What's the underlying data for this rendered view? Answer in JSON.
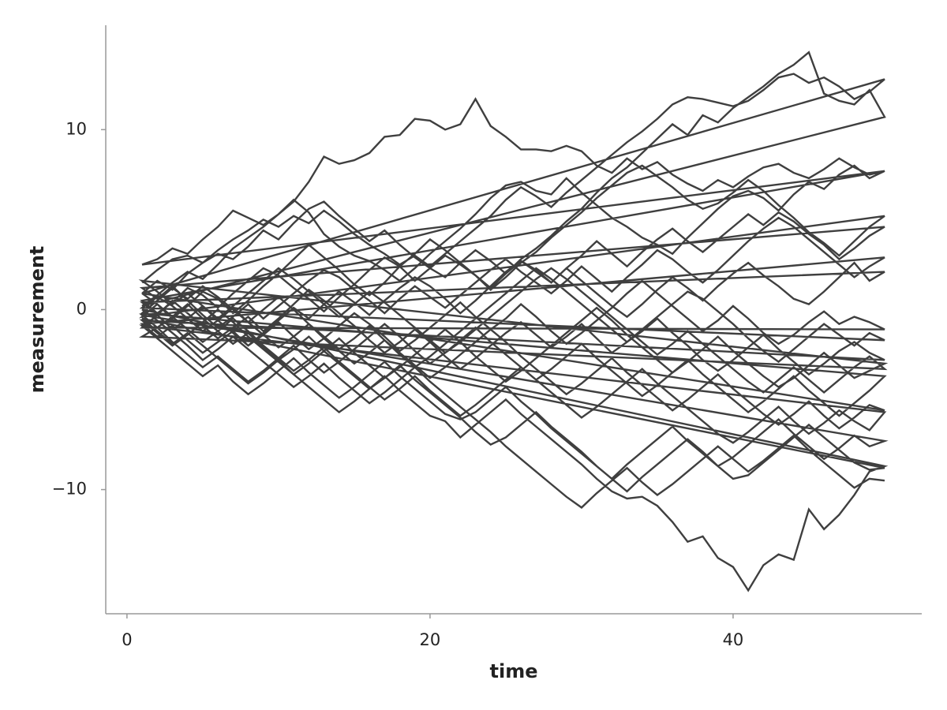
{
  "chart_data": {
    "type": "line",
    "x_label": "time",
    "y_label": "measurement",
    "color": "#3f3f3f",
    "grid": false,
    "xlim": [
      -1.4,
      52.45
    ],
    "ylim": [
      -16.9,
      15.8
    ],
    "xticks": [
      0,
      20,
      40
    ],
    "yticks": [
      {
        "value": -10,
        "label": "−10"
      },
      0,
      10
    ],
    "x": [
      1,
      2,
      3,
      4,
      5,
      6,
      7,
      8,
      9,
      10,
      11,
      12,
      13,
      14,
      15,
      16,
      17,
      18,
      19,
      20,
      21,
      22,
      23,
      24,
      25,
      26,
      27,
      28,
      29,
      30,
      31,
      32,
      33,
      34,
      35,
      36,
      37,
      38,
      39,
      40,
      41,
      42,
      43,
      44,
      45,
      46,
      47,
      48,
      49,
      50
    ],
    "series": [
      {
        "values": [
          1.5,
          2.2,
          2.8,
          3.0,
          2.6,
          3.3,
          3.9,
          4.4,
          5.0,
          4.6,
          5.2,
          4.8,
          5.5,
          4.9,
          4.2,
          3.6,
          3.1,
          2.5,
          3.0,
          2.4,
          3.1,
          3.8,
          4.5,
          5.2,
          6.1,
          6.8,
          6.3,
          5.7,
          6.5,
          7.2,
          7.9,
          8.6,
          9.3,
          9.9,
          10.6,
          11.4,
          11.8,
          11.7,
          11.5,
          11.3,
          11.6,
          12.2,
          12.9,
          13.1,
          12.6,
          12.9,
          12.4,
          11.7,
          12.1,
          12.8
        ]
      },
      {
        "values": [
          0.9,
          1.6,
          1.1,
          2.0,
          2.6,
          3.1,
          2.8,
          3.5,
          4.4,
          3.9,
          4.8,
          5.6,
          6.0,
          5.2,
          4.5,
          3.8,
          4.4,
          3.6,
          2.9,
          2.3,
          1.8,
          2.6,
          3.3,
          2.7,
          2.0,
          2.8,
          3.4,
          4.1,
          4.9,
          5.6,
          6.5,
          7.3,
          7.9,
          8.7,
          9.5,
          10.3,
          9.7,
          10.8,
          10.4,
          11.2,
          11.8,
          12.4,
          13.1,
          13.6,
          14.3,
          12.0,
          11.6,
          11.4,
          12.2,
          10.7
        ]
      },
      {
        "values": [
          0.2,
          0.8,
          1.5,
          2.1,
          1.7,
          2.5,
          3.4,
          4.0,
          4.6,
          5.3,
          6.0,
          7.1,
          8.5,
          8.1,
          8.3,
          8.7,
          9.6,
          9.7,
          10.6,
          10.5,
          10.0,
          10.3,
          11.7,
          10.2,
          9.6,
          8.9,
          8.9,
          8.8,
          9.1,
          8.8,
          8.0,
          7.6,
          8.4,
          7.8,
          8.2,
          7.5,
          7.0,
          6.6,
          7.2,
          6.8,
          7.4,
          7.9,
          8.1,
          7.6,
          7.3,
          7.8,
          8.4,
          7.9,
          7.5,
          7.7
        ]
      },
      {
        "values": [
          2.5,
          2.8,
          3.4,
          3.1,
          3.9,
          4.6,
          5.5,
          5.1,
          4.7,
          5.3,
          6.1,
          5.4,
          4.2,
          3.5,
          3.0,
          2.7,
          2.2,
          1.6,
          2.3,
          3.1,
          3.8,
          4.5,
          5.3,
          6.2,
          6.9,
          7.1,
          6.6,
          6.4,
          7.3,
          6.5,
          5.8,
          5.1,
          4.6,
          4.0,
          3.6,
          3.1,
          4.0,
          4.8,
          5.6,
          6.3,
          6.6,
          6.2,
          5.5,
          6.4,
          7.1,
          6.7,
          7.5,
          8.0,
          7.3,
          7.7
        ]
      },
      {
        "values": [
          0.5,
          -0.2,
          0.4,
          1.2,
          0.8,
          0.1,
          0.9,
          1.6,
          2.3,
          1.9,
          1.2,
          0.6,
          -0.1,
          0.7,
          1.4,
          2.2,
          2.9,
          2.4,
          1.6,
          2.3,
          3.0,
          2.5,
          1.9,
          1.1,
          1.8,
          2.6,
          3.2,
          4.0,
          4.7,
          5.4,
          6.2,
          6.9,
          7.6,
          8.0,
          7.4,
          6.8,
          6.1,
          5.6,
          5.9,
          6.5,
          7.2,
          6.6,
          5.8,
          5.1,
          4.3,
          3.7,
          3.0,
          3.8,
          4.6,
          5.2
        ]
      },
      {
        "values": [
          -0.4,
          0.3,
          -0.5,
          0.2,
          1.0,
          0.6,
          -0.2,
          0.5,
          1.3,
          2.0,
          2.8,
          3.6,
          2.9,
          2.2,
          1.4,
          0.8,
          1.5,
          2.4,
          3.1,
          3.9,
          3.3,
          2.6,
          1.9,
          1.2,
          2.0,
          2.7,
          2.1,
          1.5,
          2.3,
          3.0,
          3.8,
          3.1,
          2.4,
          3.2,
          3.9,
          4.5,
          3.8,
          3.2,
          3.9,
          4.6,
          5.3,
          4.7,
          5.4,
          4.9,
          4.2,
          3.6,
          2.8,
          3.4,
          4.1,
          4.6
        ]
      },
      {
        "values": [
          1.2,
          0.6,
          1.3,
          0.5,
          -0.3,
          -1.0,
          -0.4,
          0.3,
          -0.5,
          0.2,
          0.9,
          1.6,
          2.2,
          1.8,
          1.1,
          0.5,
          -0.2,
          0.6,
          1.3,
          0.7,
          0.1,
          0.8,
          1.5,
          2.2,
          2.8,
          2.1,
          1.5,
          0.9,
          1.6,
          2.4,
          1.7,
          1.0,
          1.8,
          2.5,
          3.3,
          2.8,
          2.1,
          1.5,
          2.2,
          3.0,
          3.8,
          4.5,
          5.1,
          4.6,
          3.9,
          3.2,
          2.5,
          1.8,
          2.4,
          2.9
        ]
      },
      {
        "values": [
          -0.8,
          -1.5,
          -0.9,
          -1.7,
          -2.4,
          -1.8,
          -1.2,
          -2.0,
          -1.3,
          -0.6,
          0.1,
          -0.5,
          0.3,
          1.0,
          0.4,
          -0.3,
          0.5,
          1.2,
          1.8,
          1.3,
          0.6,
          -0.2,
          0.5,
          1.3,
          2.1,
          2.7,
          2.2,
          1.5,
          2.3,
          1.6,
          0.9,
          0.2,
          -0.4,
          0.3,
          1.1,
          1.8,
          1.2,
          0.5,
          1.3,
          2.0,
          2.6,
          1.9,
          1.3,
          0.6,
          0.3,
          1.0,
          1.8,
          2.6,
          1.6,
          2.1
        ]
      },
      {
        "values": [
          0.4,
          -0.3,
          -1.1,
          -0.5,
          0.2,
          -0.6,
          -1.3,
          -2.0,
          -1.4,
          -0.7,
          -1.5,
          -2.2,
          -1.6,
          -0.9,
          -0.2,
          -0.8,
          -1.5,
          -2.3,
          -1.7,
          -1.0,
          -0.3,
          0.4,
          -0.4,
          -1.1,
          -0.5,
          0.3,
          -0.4,
          -1.2,
          -1.9,
          -1.3,
          -0.6,
          0.1,
          0.9,
          1.6,
          0.9,
          0.2,
          -0.5,
          -1.2,
          -0.6,
          0.2,
          -0.5,
          -1.3,
          -1.9,
          -1.4,
          -0.7,
          -0.1,
          -0.8,
          -0.4,
          -0.7,
          -1.1
        ]
      },
      {
        "values": [
          -1.0,
          -0.3,
          0.5,
          -0.2,
          -0.9,
          -1.6,
          -1.0,
          -0.4,
          -1.2,
          -0.5,
          0.3,
          1.1,
          0.5,
          -0.2,
          -0.9,
          -1.7,
          -2.4,
          -1.8,
          -1.1,
          -1.8,
          -2.6,
          -3.3,
          -2.7,
          -2.0,
          -1.3,
          -0.7,
          -1.4,
          -2.1,
          -1.5,
          -0.8,
          -1.6,
          -2.4,
          -1.8,
          -1.1,
          -0.4,
          0.3,
          1.0,
          0.6,
          -0.1,
          -0.8,
          -1.6,
          -2.3,
          -2.9,
          -2.2,
          -1.5,
          -0.8,
          -1.4,
          -2.0,
          -1.3,
          -1.7
        ]
      },
      {
        "values": [
          0.1,
          0.7,
          0.2,
          -0.5,
          -1.2,
          -0.6,
          0.1,
          -0.7,
          -1.4,
          -2.1,
          -1.5,
          -0.8,
          -1.6,
          -2.3,
          -3.0,
          -2.4,
          -1.7,
          -2.5,
          -3.2,
          -2.6,
          -1.9,
          -1.2,
          -0.5,
          0.2,
          0.9,
          1.6,
          2.3,
          1.7,
          1.0,
          0.3,
          -0.4,
          -1.1,
          -1.8,
          -1.2,
          -0.5,
          -1.3,
          -2.0,
          -2.8,
          -3.4,
          -2.8,
          -2.1,
          -1.4,
          -2.2,
          -2.9,
          -3.6,
          -3.0,
          -2.3,
          -1.8,
          -2.4,
          -2.8
        ]
      },
      {
        "values": [
          -0.6,
          -1.3,
          -2.0,
          -1.4,
          -0.7,
          0.0,
          -0.7,
          -1.5,
          -2.2,
          -2.9,
          -3.6,
          -3.0,
          -2.3,
          -1.6,
          -2.4,
          -3.1,
          -3.8,
          -3.2,
          -2.5,
          -1.8,
          -1.1,
          -1.8,
          -2.6,
          -3.3,
          -4.0,
          -3.4,
          -2.7,
          -2.0,
          -1.3,
          -0.6,
          0.1,
          -0.6,
          -1.4,
          -2.1,
          -2.8,
          -3.5,
          -2.9,
          -2.2,
          -1.5,
          -2.3,
          -3.0,
          -3.7,
          -4.3,
          -3.8,
          -3.1,
          -2.4,
          -3.1,
          -3.8,
          -3.4,
          -3.0
        ]
      },
      {
        "values": [
          1.6,
          1.0,
          0.3,
          0.9,
          0.2,
          -0.5,
          0.2,
          0.9,
          1.6,
          2.3,
          1.7,
          1.0,
          0.3,
          -0.4,
          0.3,
          1.0,
          0.4,
          -0.3,
          -1.0,
          -1.7,
          -2.4,
          -1.8,
          -1.1,
          -0.4,
          0.3,
          1.0,
          1.7,
          2.3,
          1.7,
          1.0,
          0.3,
          -0.4,
          -1.1,
          -1.8,
          -2.5,
          -1.9,
          -1.2,
          -1.9,
          -2.6,
          -3.3,
          -4.0,
          -4.6,
          -3.9,
          -3.2,
          -3.9,
          -4.6,
          -3.9,
          -3.2,
          -2.6,
          -3.3
        ]
      },
      {
        "values": [
          -1.5,
          -1.0,
          -1.8,
          -2.5,
          -3.2,
          -2.6,
          -3.3,
          -4.0,
          -3.4,
          -2.7,
          -2.0,
          -2.8,
          -3.5,
          -2.9,
          -2.2,
          -1.5,
          -0.8,
          -1.5,
          -2.3,
          -3.0,
          -2.4,
          -1.7,
          -1.0,
          -1.8,
          -2.5,
          -3.2,
          -3.9,
          -3.3,
          -2.6,
          -1.9,
          -2.7,
          -3.4,
          -4.1,
          -4.8,
          -4.2,
          -3.5,
          -2.8,
          -3.6,
          -4.3,
          -5.0,
          -5.7,
          -5.1,
          -4.4,
          -3.7,
          -4.5,
          -5.2,
          -5.9,
          -5.2,
          -4.5,
          -3.7
        ]
      },
      {
        "values": [
          -0.2,
          0.5,
          1.2,
          0.6,
          1.3,
          0.7,
          0.0,
          -0.7,
          0.0,
          0.7,
          0.0,
          -0.8,
          -1.5,
          -2.2,
          -1.6,
          -0.9,
          -1.7,
          -2.4,
          -3.1,
          -3.8,
          -3.2,
          -2.5,
          -1.8,
          -1.1,
          -1.8,
          -2.6,
          -3.3,
          -4.0,
          -4.7,
          -4.1,
          -3.4,
          -2.7,
          -3.5,
          -4.2,
          -4.9,
          -5.6,
          -5.0,
          -4.3,
          -3.6,
          -4.4,
          -5.1,
          -5.8,
          -6.4,
          -5.8,
          -5.1,
          -5.9,
          -6.6,
          -6.0,
          -5.3,
          -5.6
        ]
      },
      {
        "values": [
          0.9,
          0.3,
          -0.4,
          -1.1,
          -1.8,
          -1.2,
          -0.5,
          -1.2,
          -2.0,
          -2.7,
          -3.4,
          -2.8,
          -2.1,
          -2.9,
          -3.6,
          -4.3,
          -5.0,
          -4.4,
          -3.7,
          -4.5,
          -5.2,
          -5.9,
          -5.3,
          -4.6,
          -3.9,
          -3.2,
          -3.9,
          -4.6,
          -5.3,
          -6.0,
          -5.4,
          -4.7,
          -4.0,
          -3.3,
          -4.1,
          -4.8,
          -5.5,
          -6.2,
          -6.9,
          -7.4,
          -6.8,
          -6.1,
          -5.4,
          -6.2,
          -6.9,
          -6.3,
          -5.6,
          -6.2,
          -6.7,
          -5.7
        ]
      },
      {
        "values": [
          -0.9,
          -1.6,
          -2.3,
          -3.0,
          -3.7,
          -3.1,
          -4.0,
          -4.7,
          -4.1,
          -3.4,
          -2.7,
          -3.5,
          -4.2,
          -4.9,
          -4.3,
          -3.6,
          -2.9,
          -3.7,
          -4.4,
          -5.1,
          -5.8,
          -6.1,
          -5.7,
          -5.0,
          -4.3,
          -5.1,
          -5.8,
          -6.6,
          -7.3,
          -8.0,
          -8.7,
          -9.4,
          -10.1,
          -9.3,
          -8.6,
          -7.9,
          -7.2,
          -7.9,
          -8.7,
          -8.2,
          -7.5,
          -6.8,
          -6.1,
          -6.9,
          -7.6,
          -8.3,
          -7.7,
          -7.0,
          -7.6,
          -7.3
        ]
      },
      {
        "values": [
          -0.3,
          -1.0,
          -0.4,
          0.3,
          -0.5,
          -1.2,
          -1.9,
          -1.3,
          -2.1,
          -2.8,
          -2.2,
          -1.5,
          -2.3,
          -3.0,
          -3.7,
          -4.4,
          -3.8,
          -3.1,
          -3.9,
          -4.6,
          -5.3,
          -6.0,
          -6.8,
          -7.5,
          -7.1,
          -6.4,
          -5.7,
          -6.5,
          -7.2,
          -7.9,
          -8.7,
          -9.4,
          -8.6,
          -7.9,
          -7.2,
          -6.5,
          -7.3,
          -8.0,
          -8.7,
          -9.4,
          -9.2,
          -8.5,
          -7.8,
          -7.1,
          -6.4,
          -7.1,
          -7.8,
          -8.5,
          -8.9,
          -8.8
        ]
      },
      {
        "values": [
          -0.5,
          -1.2,
          -1.9,
          -1.3,
          -2.0,
          -2.7,
          -3.4,
          -4.1,
          -3.5,
          -2.8,
          -3.6,
          -4.3,
          -5.0,
          -5.7,
          -5.1,
          -4.4,
          -3.7,
          -4.5,
          -5.2,
          -5.9,
          -6.2,
          -7.1,
          -6.4,
          -5.7,
          -5.0,
          -5.8,
          -6.5,
          -7.2,
          -7.9,
          -8.6,
          -9.4,
          -10.1,
          -10.5,
          -10.4,
          -10.9,
          -11.8,
          -12.9,
          -12.6,
          -13.8,
          -14.3,
          -15.6,
          -14.2,
          -13.6,
          -13.9,
          -11.1,
          -12.2,
          -11.4,
          -10.3,
          -9.0,
          -8.7
        ]
      },
      {
        "values": [
          0.0,
          -0.6,
          -1.3,
          -2.0,
          -2.8,
          -2.2,
          -1.5,
          -2.2,
          -2.9,
          -3.6,
          -4.3,
          -3.7,
          -3.0,
          -3.8,
          -4.5,
          -5.2,
          -4.6,
          -3.9,
          -3.2,
          -4.0,
          -4.7,
          -5.4,
          -6.1,
          -6.8,
          -7.6,
          -8.3,
          -9.0,
          -9.7,
          -10.4,
          -11.0,
          -10.2,
          -9.5,
          -8.8,
          -9.6,
          -10.3,
          -9.7,
          -9.0,
          -8.3,
          -7.6,
          -8.3,
          -9.0,
          -8.4,
          -7.7,
          -7.0,
          -7.8,
          -8.5,
          -9.2,
          -9.9,
          -9.4,
          -9.5
        ]
      }
    ]
  }
}
